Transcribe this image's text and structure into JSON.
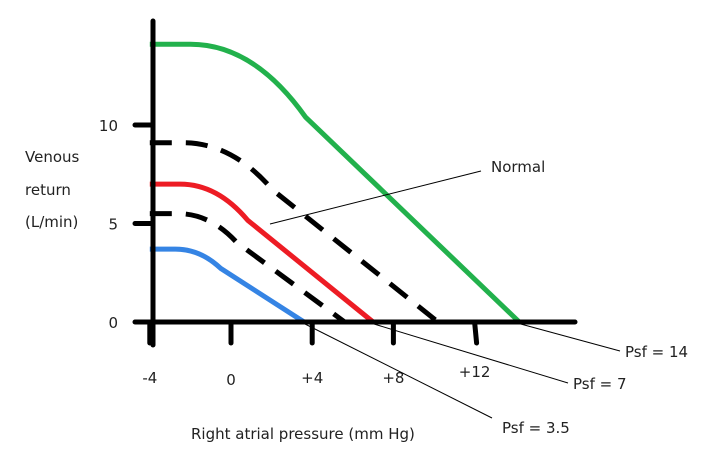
{
  "chart_data": {
    "type": "line",
    "title": "",
    "xlabel": "Right atrial pressure (mm Hg)",
    "ylabel": [
      "Venous",
      "return",
      "(L/min)"
    ],
    "xlim": [
      -4,
      17
    ],
    "ylim": [
      0,
      15
    ],
    "x_ticks": [
      -4,
      0,
      4,
      8,
      12
    ],
    "x_tick_labels": [
      "-4",
      "0",
      "+4",
      "+8",
      "+12"
    ],
    "y_ticks": [
      0,
      5,
      10
    ],
    "y_tick_labels": [
      "0",
      "5",
      "10"
    ],
    "grid": false,
    "series": [
      {
        "name": "Psf = 14",
        "color": "#22b14c",
        "style": "solid",
        "plateau": 14.1,
        "intercept": 14.2
      },
      {
        "name": "dashed-upper",
        "color": "#000000",
        "style": "dashed",
        "plateau": 9.1,
        "intercept": 10.2
      },
      {
        "name": "Psf = 7 (Normal)",
        "color": "#ed1c24",
        "style": "solid",
        "plateau": 7.0,
        "intercept": 7.0
      },
      {
        "name": "dashed-lower",
        "color": "#000000",
        "style": "dashed",
        "plateau": 5.5,
        "intercept": 5.6
      },
      {
        "name": "Psf = 3.5",
        "color": "#3584e4",
        "style": "solid",
        "plateau": 3.7,
        "intercept": 3.6
      }
    ],
    "annotations": [
      {
        "text": "Normal",
        "target_series": 2
      },
      {
        "text": "Psf = 14",
        "target_series": 0
      },
      {
        "text": "Psf = 7",
        "target_series": 2
      },
      {
        "text": "Psf = 3.5",
        "target_series": 4
      }
    ]
  }
}
